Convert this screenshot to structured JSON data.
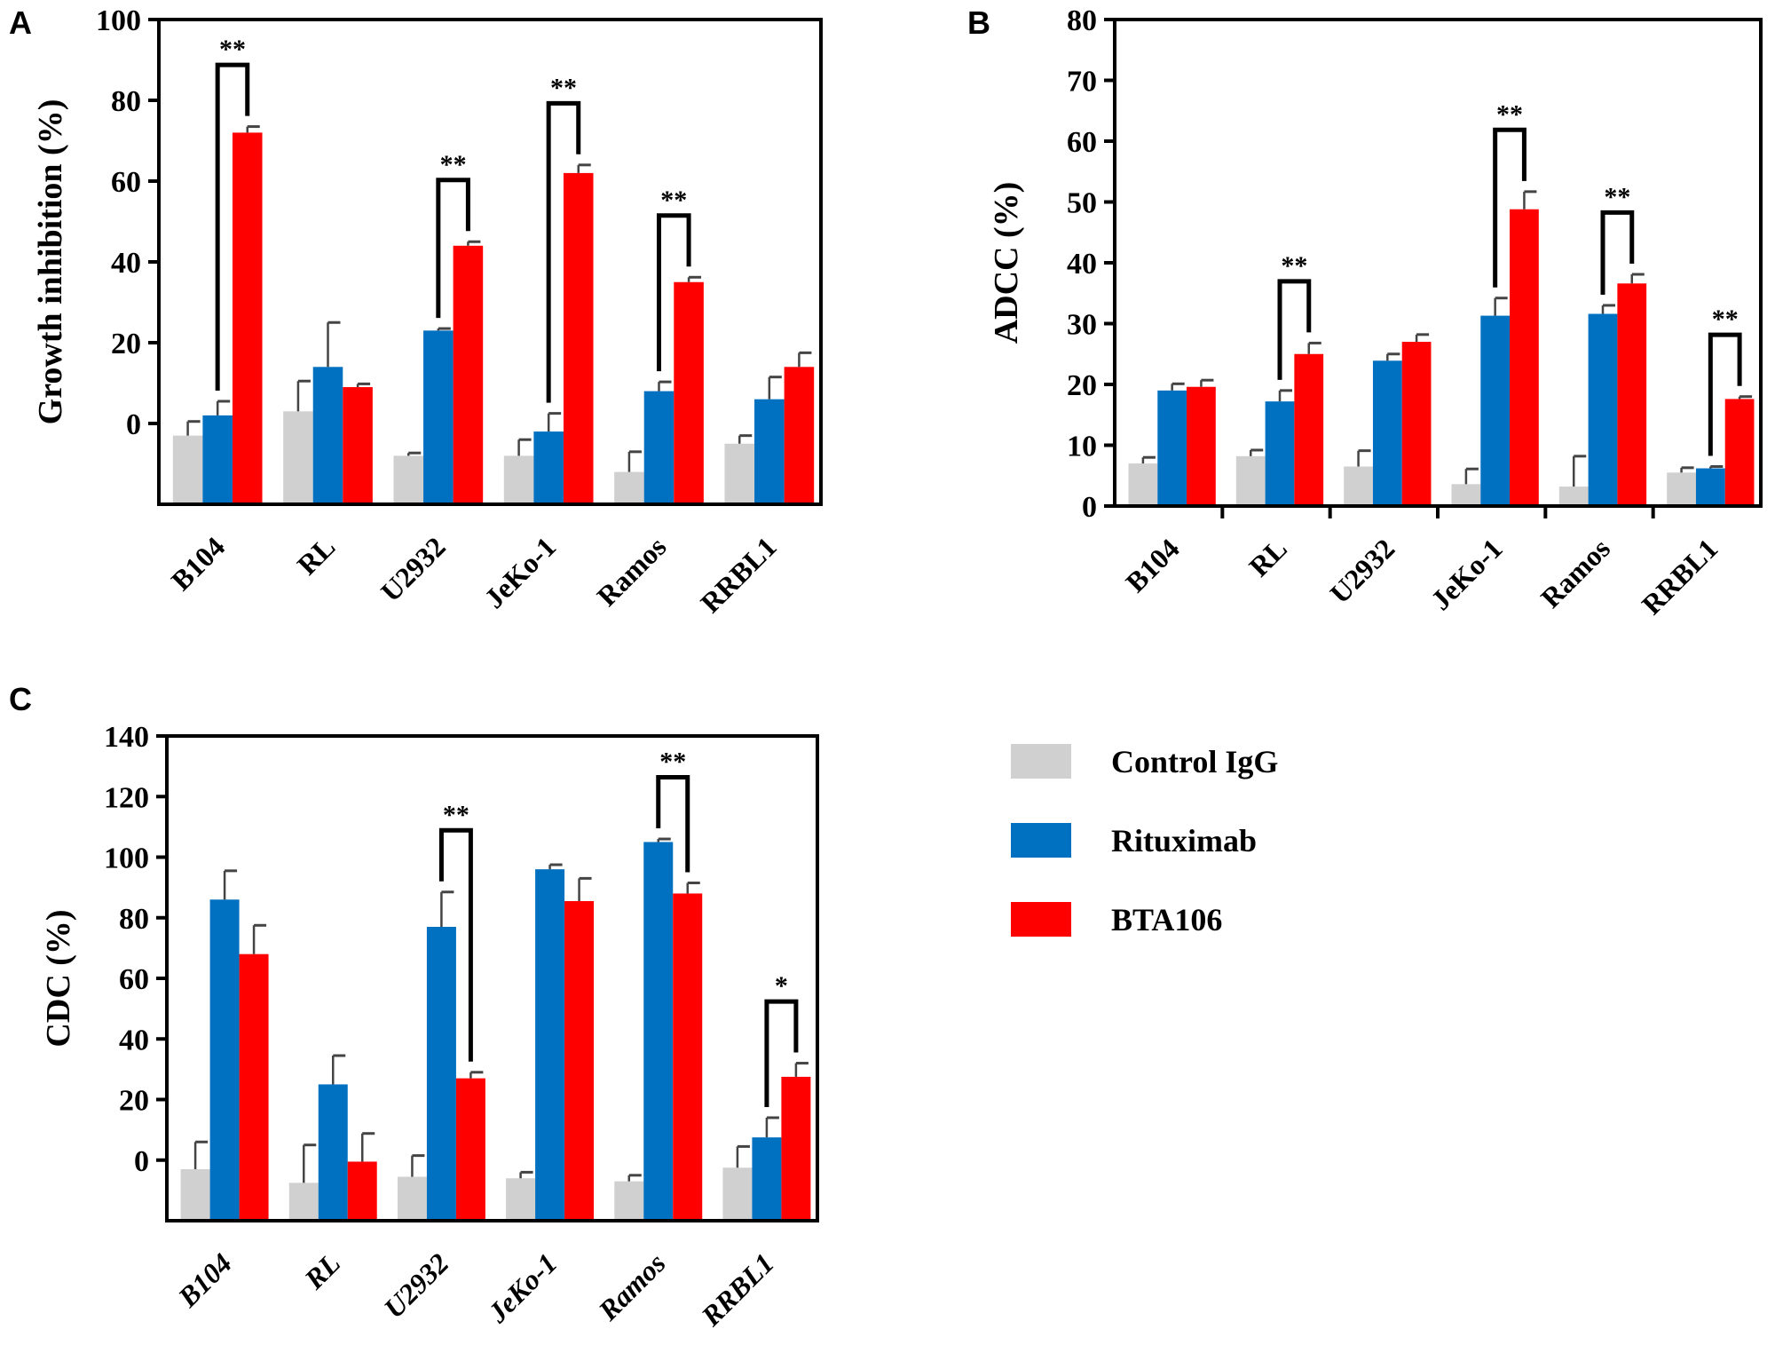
{
  "legend": {
    "items": [
      {
        "name": "Control IgG",
        "color": "#d0d0d0"
      },
      {
        "name": "Rituximab",
        "color": "#0070c0"
      },
      {
        "name": "BTA106",
        "color": "#ff0000"
      }
    ]
  },
  "chart_data": [
    {
      "panel": "A",
      "type": "bar",
      "ylabel": "Growth inhibition (%)",
      "ylim": [
        -20,
        100
      ],
      "yticks": [
        0,
        20,
        40,
        60,
        80,
        100
      ],
      "categories": [
        "B104",
        "RL",
        "U2932",
        "JeKo-1",
        "Ramos",
        "RRBL1"
      ],
      "series": [
        {
          "name": "Control IgG",
          "color": "#d0d0d0",
          "values": [
            -3,
            3,
            -8,
            -8,
            -12,
            -5
          ],
          "errors": [
            3.5,
            7.5,
            0.7,
            4,
            5,
            2
          ]
        },
        {
          "name": "Rituximab",
          "color": "#0070c0",
          "values": [
            2,
            14,
            23,
            -2,
            8,
            6
          ],
          "errors": [
            3.5,
            11,
            0.5,
            4.5,
            2.3,
            5.5
          ]
        },
        {
          "name": "BTA106",
          "color": "#ff0000",
          "values": [
            72,
            9,
            44,
            62,
            35,
            14
          ],
          "errors": [
            1.5,
            0.8,
            1,
            2,
            1.2,
            3.5
          ]
        }
      ],
      "significance": [
        {
          "category": "B104",
          "label": "**"
        },
        {
          "category": "U2932",
          "label": "**"
        },
        {
          "category": "JeKo-1",
          "label": "**"
        },
        {
          "category": "Ramos",
          "label": "**"
        }
      ]
    },
    {
      "panel": "B",
      "type": "bar",
      "ylabel": "ADCC (%)",
      "ylim": [
        0,
        80
      ],
      "yticks": [
        0,
        10,
        20,
        30,
        40,
        50,
        60,
        70,
        80
      ],
      "categories": [
        "B104",
        "RL",
        "U2932",
        "JeKo-1",
        "Ramos",
        "RRBL1"
      ],
      "series": [
        {
          "name": "Control IgG",
          "color": "#d0d0d0",
          "values": [
            7,
            8.2,
            6.5,
            3.6,
            3.2,
            5.5
          ],
          "errors": [
            1,
            1,
            2.6,
            2.5,
            5,
            0.8
          ]
        },
        {
          "name": "Rituximab",
          "color": "#0070c0",
          "values": [
            19,
            17.2,
            23.9,
            31.3,
            31.6,
            6.2
          ],
          "errors": [
            1.1,
            1.8,
            1.1,
            2.9,
            1.4,
            0.3
          ]
        },
        {
          "name": "BTA106",
          "color": "#ff0000",
          "values": [
            19.6,
            25,
            27,
            48.8,
            36.6,
            17.6
          ],
          "errors": [
            1.1,
            1.8,
            1.2,
            2.9,
            1.5,
            0.4
          ]
        }
      ],
      "significance": [
        {
          "category": "RL",
          "label": "**"
        },
        {
          "category": "JeKo-1",
          "label": "**"
        },
        {
          "category": "Ramos",
          "label": "**"
        },
        {
          "category": "RRBL1",
          "label": "**"
        }
      ]
    },
    {
      "panel": "C",
      "type": "bar",
      "ylabel": "CDC (%)",
      "ylim": [
        -20,
        140
      ],
      "yticks": [
        0,
        20,
        40,
        60,
        80,
        100,
        120,
        140
      ],
      "categories": [
        "B104",
        "RL",
        "U2932",
        "JeKo-1",
        "Ramos",
        "RRBL1"
      ],
      "series": [
        {
          "name": "Control IgG",
          "color": "#d0d0d0",
          "values": [
            -3,
            -7.5,
            -5.5,
            -6,
            -7,
            -2.5
          ],
          "errors": [
            9,
            12.5,
            7,
            2,
            2,
            7
          ]
        },
        {
          "name": "Rituximab",
          "color": "#0070c0",
          "values": [
            86,
            25,
            77,
            96,
            105,
            7.5
          ],
          "errors": [
            9.5,
            9.5,
            11.5,
            1.5,
            1,
            6.5
          ]
        },
        {
          "name": "BTA106",
          "color": "#ff0000",
          "values": [
            68,
            -0.5,
            27,
            85.5,
            88,
            27.5
          ],
          "errors": [
            9.5,
            9.3,
            2,
            7.5,
            3.5,
            4.5
          ]
        }
      ],
      "significance": [
        {
          "category": "U2932",
          "label": "**"
        },
        {
          "category": "Ramos",
          "label": "**"
        },
        {
          "category": "RRBL1",
          "label": "*"
        }
      ]
    }
  ]
}
